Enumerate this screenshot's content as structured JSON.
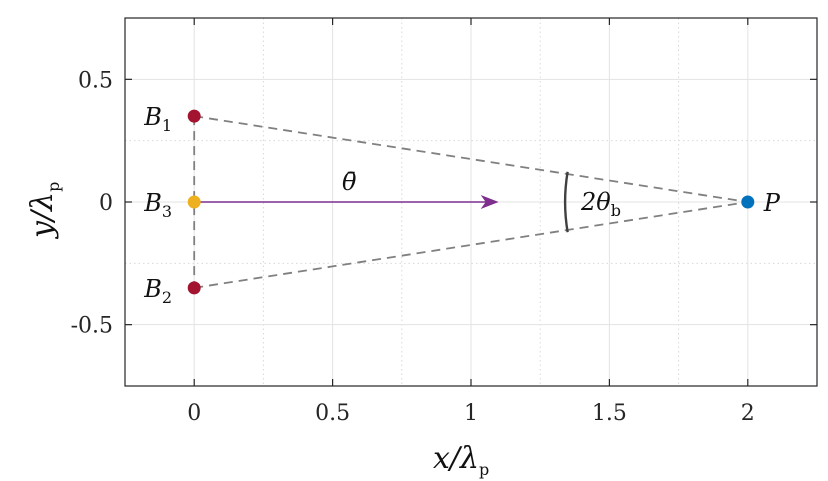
{
  "chart_data": {
    "type": "scatter",
    "title": "",
    "xlabel": "x/λ",
    "xlabel_sub": "p",
    "ylabel": "y/λ",
    "ylabel_sub": "p",
    "xlim": [
      -0.25,
      2.25
    ],
    "ylim": [
      -0.75,
      0.75
    ],
    "xticks": [
      0,
      0.5,
      1,
      1.5,
      2
    ],
    "xtick_labels": [
      "0",
      "0.5",
      "1",
      "1.5",
      "2"
    ],
    "yticks": [
      0.5,
      0,
      -0.5
    ],
    "ytick_labels": [
      "0.5",
      "0",
      "-0.5"
    ],
    "grid": true,
    "minor_grid": true,
    "points": [
      {
        "id": "B1",
        "label": "B",
        "sub": "1",
        "x": 0,
        "y": 0.35,
        "color": "#a2142f"
      },
      {
        "id": "B3",
        "label": "B",
        "sub": "3",
        "x": 0,
        "y": 0,
        "color": "#edb120"
      },
      {
        "id": "B2",
        "label": "B",
        "sub": "2",
        "x": 0,
        "y": -0.35,
        "color": "#a2142f"
      },
      {
        "id": "P",
        "label": "P",
        "sub": "",
        "x": 2,
        "y": 0,
        "color": "#0072bd"
      }
    ],
    "dashed_lines": [
      {
        "from": [
          0,
          0.35
        ],
        "to": [
          2,
          0
        ]
      },
      {
        "from": [
          0,
          -0.35
        ],
        "to": [
          2,
          0
        ]
      },
      {
        "from": [
          0,
          0.35
        ],
        "to": [
          0,
          -0.35
        ]
      }
    ],
    "arrow": {
      "from": [
        0,
        0
      ],
      "to": [
        1.1,
        0
      ],
      "label": "θ̄",
      "color": "#7e2f8e"
    },
    "angle_annotation": {
      "center": [
        2,
        0
      ],
      "radius": 0.66,
      "label": "2θ",
      "label_sub": "b"
    }
  }
}
